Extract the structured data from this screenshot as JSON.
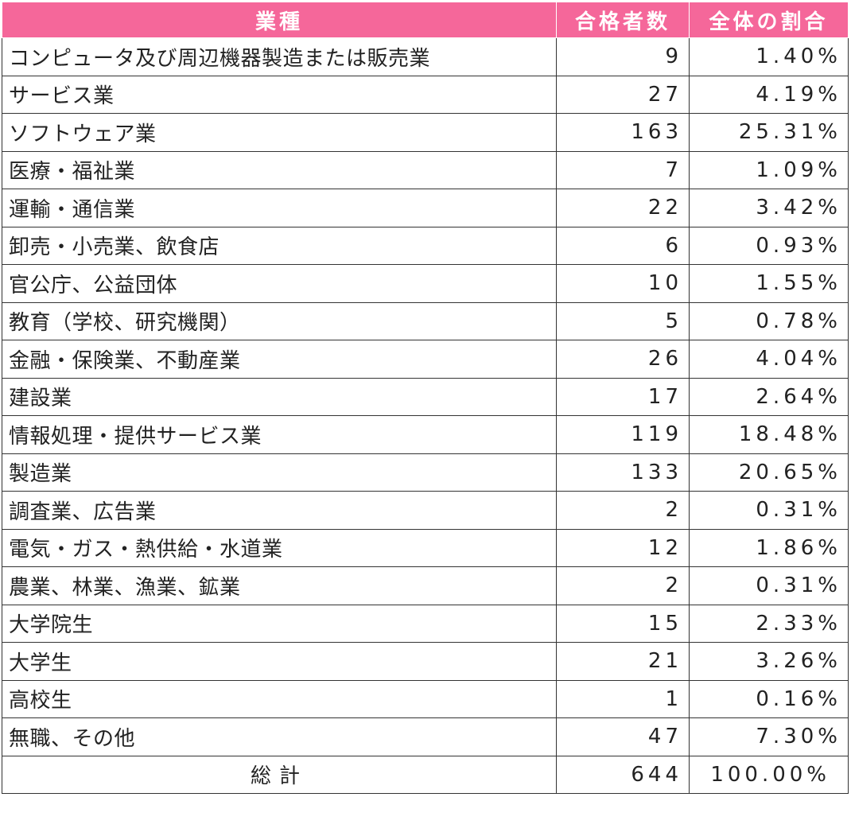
{
  "header": {
    "industry": "業種",
    "passers": "合格者数",
    "ratio": "全体の割合"
  },
  "rows": [
    {
      "industry": "コンピュータ及び周辺機器製造または販売業",
      "count": "9",
      "ratio": "1.40%"
    },
    {
      "industry": "サービス業",
      "count": "27",
      "ratio": "4.19%"
    },
    {
      "industry": "ソフトウェア業",
      "count": "163",
      "ratio": "25.31%"
    },
    {
      "industry": "医療・福祉業",
      "count": "7",
      "ratio": "1.09%"
    },
    {
      "industry": "運輸・通信業",
      "count": "22",
      "ratio": "3.42%"
    },
    {
      "industry": "卸売・小売業、飲食店",
      "count": "6",
      "ratio": "0.93%"
    },
    {
      "industry": "官公庁、公益団体",
      "count": "10",
      "ratio": "1.55%"
    },
    {
      "industry": "教育（学校、研究機関）",
      "count": "5",
      "ratio": "0.78%"
    },
    {
      "industry": "金融・保険業、不動産業",
      "count": "26",
      "ratio": "4.04%"
    },
    {
      "industry": "建設業",
      "count": "17",
      "ratio": "2.64%"
    },
    {
      "industry": "情報処理・提供サービス業",
      "count": "119",
      "ratio": "18.48%"
    },
    {
      "industry": "製造業",
      "count": "133",
      "ratio": "20.65%"
    },
    {
      "industry": "調査業、広告業",
      "count": "2",
      "ratio": "0.31%"
    },
    {
      "industry": "電気・ガス・熱供給・水道業",
      "count": "12",
      "ratio": "1.86%"
    },
    {
      "industry": "農業、林業、漁業、鉱業",
      "count": "2",
      "ratio": "0.31%"
    },
    {
      "industry": "大学院生",
      "count": "15",
      "ratio": "2.33%"
    },
    {
      "industry": "大学生",
      "count": "21",
      "ratio": "3.26%"
    },
    {
      "industry": "高校生",
      "count": "1",
      "ratio": "0.16%"
    },
    {
      "industry": "無職、その他",
      "count": "47",
      "ratio": "7.30%"
    }
  ],
  "total": {
    "label": "総計",
    "count": "644",
    "ratio": "100.00%"
  },
  "colors": {
    "header_bg": "#f5679a",
    "header_text": "#ffffff",
    "border": "#333333"
  }
}
